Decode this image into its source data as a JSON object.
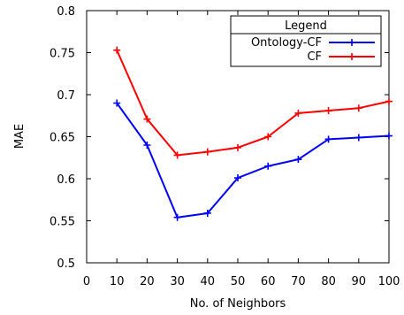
{
  "chart_data": {
    "type": "line",
    "title": "",
    "xlabel": "No. of Neighbors",
    "ylabel": "MAE",
    "xlim": [
      0,
      100
    ],
    "ylim": [
      0.5,
      0.8
    ],
    "x_ticks": [
      0,
      10,
      20,
      30,
      40,
      50,
      60,
      70,
      80,
      90,
      100
    ],
    "y_ticks": [
      0.5,
      0.55,
      0.6,
      0.65,
      0.7,
      0.75,
      0.8
    ],
    "x_tick_labels": [
      "0",
      "10",
      "20",
      "30",
      "40",
      "50",
      "60",
      "70",
      "80",
      "90",
      "100"
    ],
    "y_tick_labels": [
      "0.5",
      "0.55",
      "0.6",
      "0.65",
      "0.7",
      "0.75",
      "0.8"
    ],
    "grid": false,
    "legend": {
      "title": "Legend",
      "placement": "top-right"
    },
    "x": [
      10,
      20,
      30,
      40,
      50,
      60,
      70,
      80,
      90,
      100
    ],
    "series": [
      {
        "name": "Ontology-CF",
        "color": "#0000ff",
        "values": [
          0.69,
          0.64,
          0.554,
          0.559,
          0.601,
          0.615,
          0.623,
          0.647,
          0.649,
          0.651
        ]
      },
      {
        "name": "CF",
        "color": "#ff0000",
        "values": [
          0.753,
          0.671,
          0.628,
          0.632,
          0.637,
          0.65,
          0.678,
          0.681,
          0.684,
          0.692
        ]
      }
    ]
  }
}
